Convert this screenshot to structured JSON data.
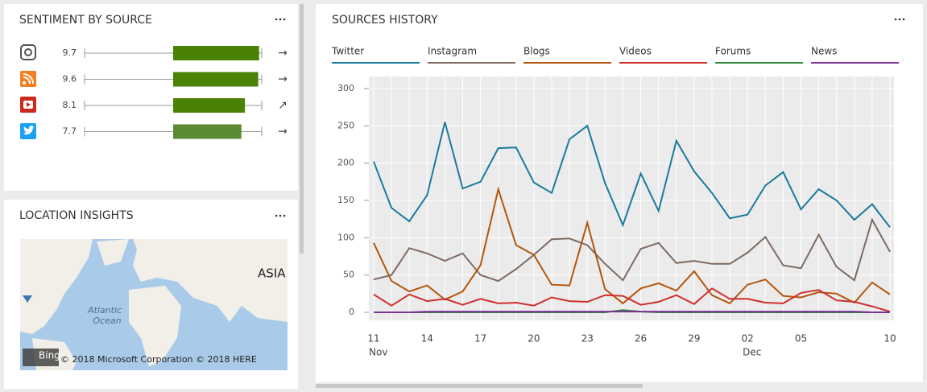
{
  "sentiment": {
    "title": "SENTIMENT BY SOURCE",
    "xlim": [
      -10,
      10
    ],
    "rows": [
      {
        "value": 9.7,
        "color": "#498205",
        "trend": "→"
      },
      {
        "value": 9.6,
        "color": "#498205",
        "trend": "→"
      },
      {
        "value": 8.1,
        "color": "#498205",
        "trend": "↗"
      },
      {
        "value": 7.7,
        "color": "#5c8a32",
        "trend": "→"
      }
    ]
  },
  "location": {
    "title": "LOCATION INSIGHTS",
    "map_labels": [
      "ASIA",
      "Atlantic",
      "Ocean"
    ],
    "brand": "Bing",
    "copyright": "© 2018 Microsoft Corporation © 2018 HERE"
  },
  "chart_data": {
    "type": "line",
    "title": "SOURCES HISTORY",
    "categories": [
      "11",
      null,
      null,
      "14",
      null,
      null,
      "17",
      null,
      null,
      "20",
      null,
      null,
      "23",
      null,
      null,
      "26",
      null,
      null,
      "29",
      null,
      null,
      "02",
      null,
      null,
      "05",
      null,
      null,
      null,
      null,
      "10"
    ],
    "x_groups": [
      {
        "label": "Nov",
        "at": 0
      },
      {
        "label": "Dec",
        "at": 21
      }
    ],
    "ylim": [
      0,
      300
    ],
    "yticks": [
      0,
      50,
      100,
      150,
      200,
      250,
      300
    ],
    "grid": true,
    "series": [
      {
        "name": "Twitter",
        "color": "#1b7a9c",
        "values": [
          202,
          140,
          122,
          157,
          255,
          166,
          175,
          220,
          221,
          174,
          160,
          232,
          250,
          173,
          117,
          186,
          136,
          230,
          189,
          160,
          126,
          131,
          170,
          188,
          138,
          165,
          150,
          124,
          145,
          114
        ]
      },
      {
        "name": "Instagram",
        "color": "#7d6b63",
        "values": [
          44,
          50,
          86,
          79,
          69,
          79,
          50,
          42,
          58,
          77,
          98,
          99,
          90,
          65,
          43,
          85,
          93,
          66,
          69,
          65,
          65,
          80,
          101,
          63,
          59,
          104,
          61,
          43,
          124,
          81
        ]
      },
      {
        "name": "Blogs",
        "color": "#b3560c",
        "values": [
          93,
          42,
          28,
          36,
          17,
          28,
          63,
          165,
          90,
          77,
          37,
          36,
          120,
          31,
          12,
          32,
          39,
          29,
          55,
          23,
          12,
          37,
          44,
          22,
          20,
          27,
          25,
          13,
          40,
          24
        ]
      },
      {
        "name": "Videos",
        "color": "#cf2e2e",
        "values": [
          24,
          9,
          24,
          15,
          18,
          10,
          18,
          12,
          13,
          9,
          20,
          15,
          14,
          23,
          22,
          10,
          14,
          23,
          11,
          32,
          18,
          18,
          13,
          12,
          26,
          30,
          16,
          14,
          8,
          1
        ]
      },
      {
        "name": "Forums",
        "color": "#2f8a3c",
        "values": [
          0,
          0,
          0,
          0,
          0,
          0,
          0,
          0,
          0,
          0,
          0,
          0,
          0,
          0,
          3,
          1,
          0,
          0,
          0,
          0,
          0,
          0,
          0,
          0,
          0,
          0,
          0,
          0,
          0,
          0
        ]
      },
      {
        "name": "News",
        "color": "#7a3596",
        "values": [
          0,
          0,
          0,
          1,
          1,
          1,
          1,
          1,
          1,
          1,
          1,
          1,
          1,
          1,
          1,
          1,
          1,
          1,
          1,
          1,
          1,
          1,
          1,
          1,
          1,
          1,
          1,
          1,
          0,
          0
        ]
      }
    ]
  }
}
